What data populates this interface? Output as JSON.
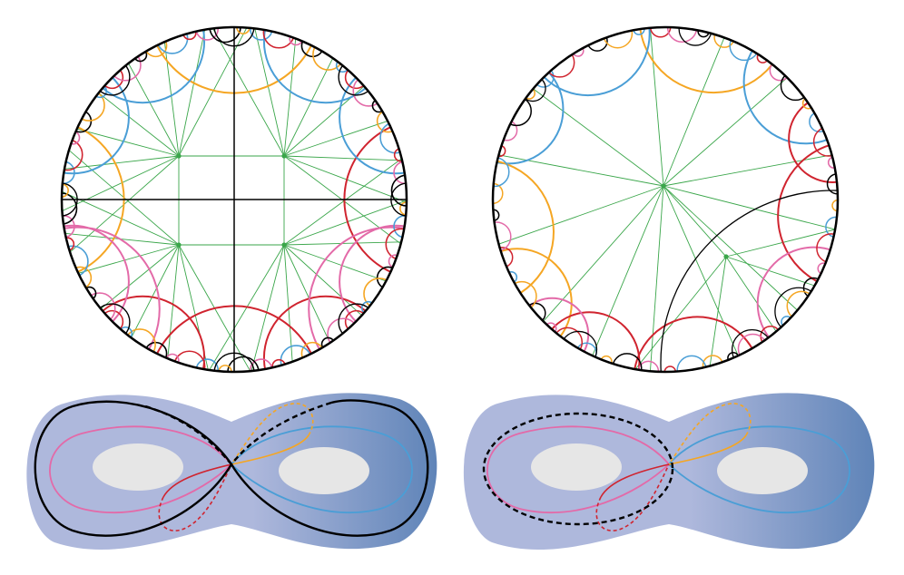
{
  "colors": {
    "boundary": "#000000",
    "green": "#3aa64a",
    "orange": "#f5a623",
    "blue": "#4a9ed6",
    "red": "#d0242f",
    "pink": "#e36aa8",
    "black": "#000000",
    "surface_light": "#aeb8dc",
    "surface_dark": "#5f84b8",
    "hole": "#e6e6e6"
  },
  "panels": [
    {
      "name": "disk-left",
      "kind": "poincare-disk",
      "symmetric": true
    },
    {
      "name": "disk-right",
      "kind": "poincare-disk",
      "symmetric": false
    },
    {
      "name": "surface-left",
      "kind": "genus-two-surface",
      "black_loop": "figure-eight"
    },
    {
      "name": "surface-right",
      "kind": "genus-two-surface",
      "black_loop": "around-left-handle"
    }
  ]
}
